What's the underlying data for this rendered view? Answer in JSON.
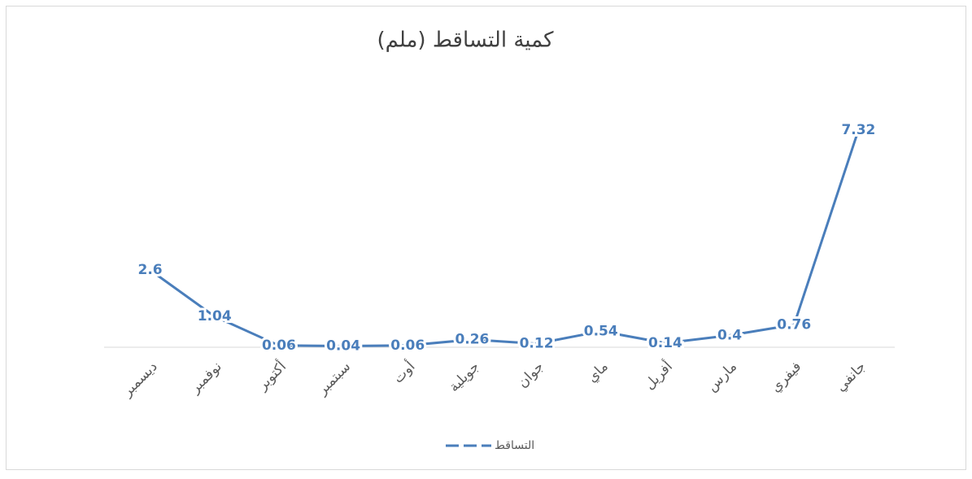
{
  "chart_data": {
    "type": "line",
    "title": "كمية التساقط (ملم)",
    "categories": [
      "جانفي",
      "فيفري",
      "مارس",
      "أفريل",
      "ماي",
      "جوان",
      "جويلية",
      "أوت",
      "سبتمبر",
      "أكتوبر",
      "نوفمبر",
      "ديسمبر"
    ],
    "series": [
      {
        "name": "التساقط",
        "color": "#4a7ebb",
        "values": [
          7.32,
          0.76,
          0.4,
          0.14,
          0.54,
          0.12,
          0.26,
          0.06,
          0.04,
          0.06,
          1.04,
          2.6
        ]
      }
    ],
    "ylim": [
      0,
      8
    ],
    "x_reversed": true,
    "data_labels": true,
    "legend": "bottom"
  }
}
